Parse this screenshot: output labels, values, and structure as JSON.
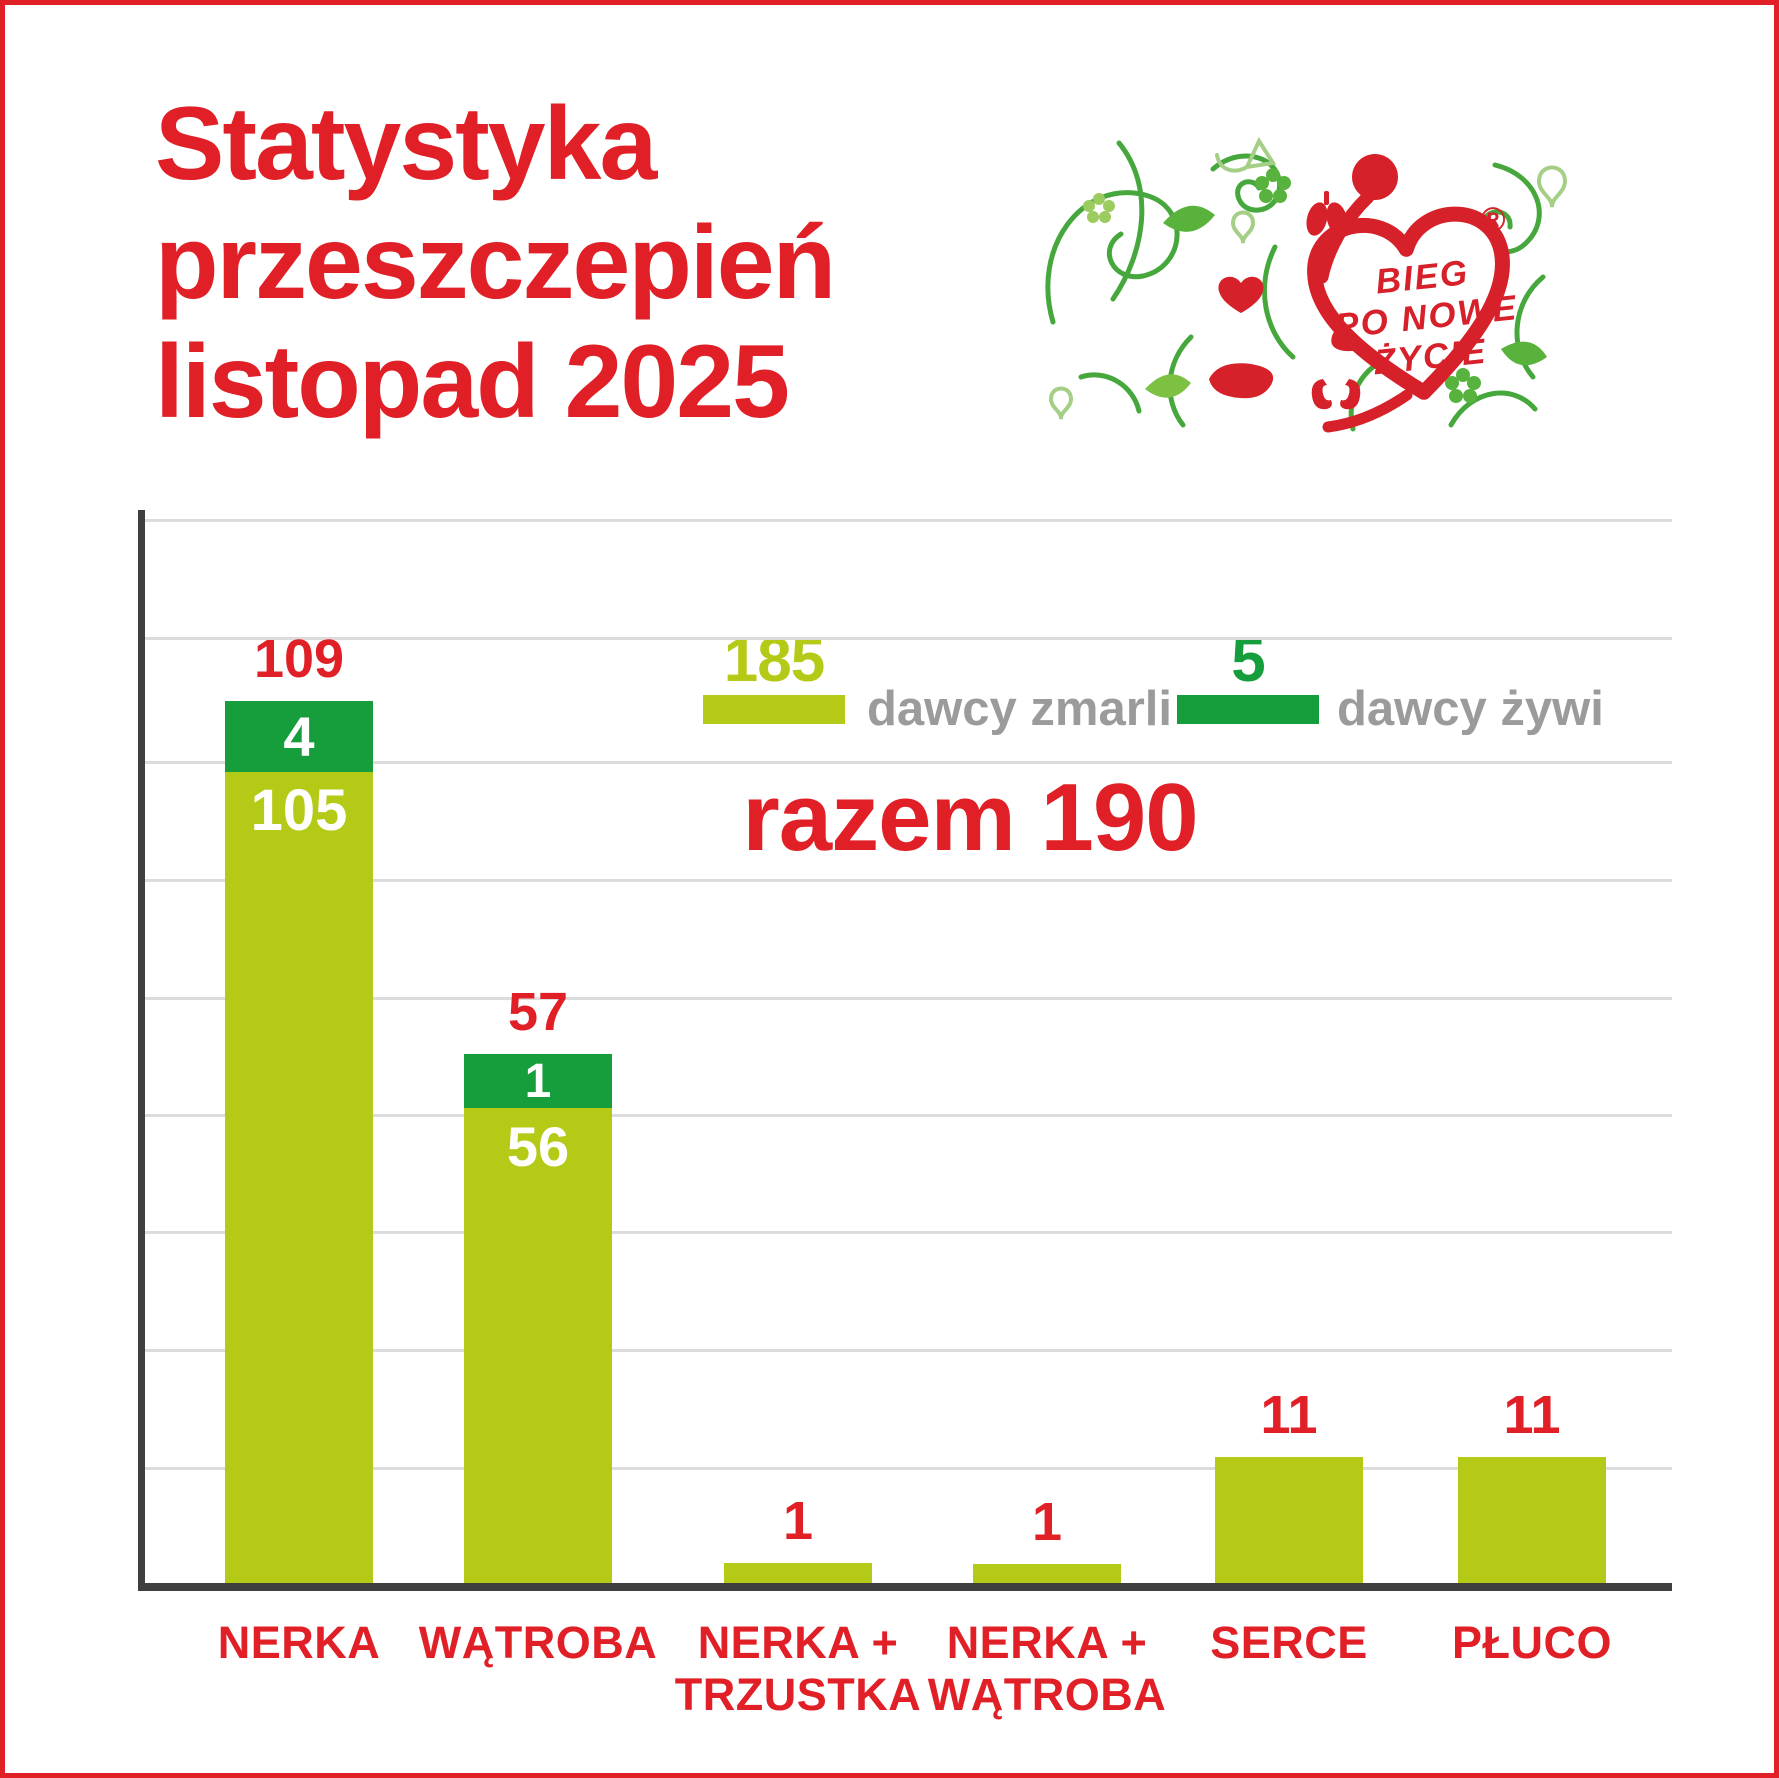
{
  "colors": {
    "red": "#e01f26",
    "light_green": "#b5ca16",
    "dark_green": "#169e3c",
    "gray_text": "#9b9b9b",
    "axis": "#3f3f3f",
    "gridline": "#dcdcdc",
    "background": "#ffffff"
  },
  "title": {
    "lines": [
      "Statystyka",
      "przeszczepień",
      "listopad 2025"
    ]
  },
  "logo": {
    "text_lines": [
      "BIEG",
      "PO NOWE",
      "ŻYCIE"
    ],
    "registered_mark": "®"
  },
  "legend": {
    "items": [
      {
        "value": "185",
        "label": "dawcy zmarli",
        "color_key": "light_green"
      },
      {
        "value": "5",
        "label": "dawcy żywi",
        "color_key": "dark_green"
      }
    ]
  },
  "total": {
    "label": "razem",
    "value": 190,
    "text": "razem 190"
  },
  "chart_data": {
    "type": "bar",
    "stacked": true,
    "categories": [
      "NERKA",
      "WĄTROBA",
      "NERKA + TRZUSTKA",
      "NERKA + WĄTROBA",
      "SERCE",
      "PŁUCO"
    ],
    "category_label_lines": [
      [
        "NERKA"
      ],
      [
        "WĄTROBA"
      ],
      [
        "NERKA +",
        "TRZUSTKA"
      ],
      [
        "NERKA +",
        "WĄTROBA"
      ],
      [
        "SERCE"
      ],
      [
        "PŁUCO"
      ]
    ],
    "series": [
      {
        "name": "dawcy zmarli",
        "color": "#b5ca16",
        "values": [
          105,
          56,
          1,
          1,
          11,
          11
        ],
        "total": 185
      },
      {
        "name": "dawcy żywi",
        "color": "#169e3c",
        "values": [
          4,
          1,
          0,
          0,
          0,
          0
        ],
        "total": 5
      }
    ],
    "bar_totals": [
      109,
      57,
      1,
      1,
      11,
      11
    ],
    "grand_total": 190,
    "xlabel": "",
    "ylabel": "",
    "gridlines": true,
    "legend_position": "top-center"
  }
}
